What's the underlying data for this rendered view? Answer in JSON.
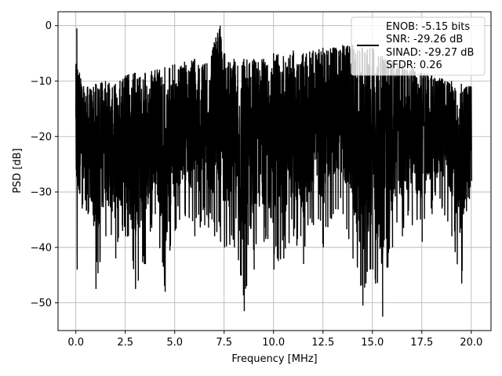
{
  "chart_data": {
    "type": "line",
    "title": "",
    "xlabel": "Frequency [MHz]",
    "ylabel": "PSD [dB]",
    "xlim": [
      -0.9,
      21.0
    ],
    "ylim": [
      -55,
      2.5
    ],
    "xticks": [
      0.0,
      2.5,
      5.0,
      7.5,
      10.0,
      12.5,
      15.0,
      17.5,
      20.0
    ],
    "xtick_labels": [
      "0.0",
      "2.5",
      "5.0",
      "7.5",
      "10.0",
      "12.5",
      "15.0",
      "17.5",
      "20.0"
    ],
    "yticks": [
      0,
      -10,
      -20,
      -30,
      -40,
      -50
    ],
    "ytick_labels": [
      "0",
      "−10",
      "−20",
      "−30",
      "−40",
      "−50"
    ],
    "grid": true,
    "legend_position": "top-right",
    "series": [
      {
        "color": "#000000",
        "envelope": {
          "x": [
            0.0,
            0.05,
            0.3,
            0.6,
            1.0,
            1.5,
            2.0,
            2.5,
            3.0,
            3.5,
            4.0,
            4.5,
            5.0,
            5.5,
            6.0,
            6.5,
            7.0,
            7.3,
            7.5,
            8.0,
            8.5,
            9.0,
            9.5,
            10.0,
            10.5,
            11.0,
            11.5,
            12.0,
            12.5,
            13.0,
            13.5,
            14.0,
            14.5,
            15.0,
            15.5,
            16.0,
            16.5,
            17.0,
            17.5,
            18.0,
            18.5,
            19.0,
            19.5,
            20.0
          ],
          "upper": [
            -8.0,
            -0.5,
            -11.0,
            -11.0,
            -10.5,
            -10.0,
            -10.5,
            -9.0,
            -8.5,
            -8.5,
            -8.0,
            -7.5,
            -7.0,
            -6.5,
            -6.0,
            -7.0,
            -3.0,
            0.0,
            -5.0,
            -6.0,
            -6.0,
            -6.0,
            -6.0,
            -5.0,
            -5.5,
            -4.5,
            -5.0,
            -4.5,
            -4.0,
            -4.0,
            -3.5,
            -3.5,
            -4.0,
            -4.0,
            -5.5,
            -6.5,
            -7.0,
            -7.5,
            -8.5,
            -9.0,
            -9.5,
            -10.0,
            -10.5,
            -11.0
          ],
          "lower": [
            -26.0,
            -44.0,
            -33.0,
            -34.0,
            -47.5,
            -38.0,
            -42.0,
            -38.0,
            -47.5,
            -43.0,
            -34.0,
            -48.0,
            -37.0,
            -34.0,
            -38.0,
            -36.0,
            -38.0,
            -39.0,
            -40.0,
            -40.0,
            -51.5,
            -44.0,
            -39.0,
            -44.0,
            -42.0,
            -38.0,
            -43.0,
            -36.0,
            -40.0,
            -34.0,
            -34.0,
            -42.0,
            -50.5,
            -44.0,
            -52.5,
            -40.0,
            -38.0,
            -36.0,
            -39.0,
            -34.0,
            -33.0,
            -38.0,
            -46.5,
            -28.0
          ]
        }
      }
    ],
    "legend": {
      "lines": [
        "ENOB: -5.15 bits",
        "SNR: -29.26 dB",
        "SINAD: -29.27 dB",
        "SFDR: 0.26"
      ]
    }
  }
}
